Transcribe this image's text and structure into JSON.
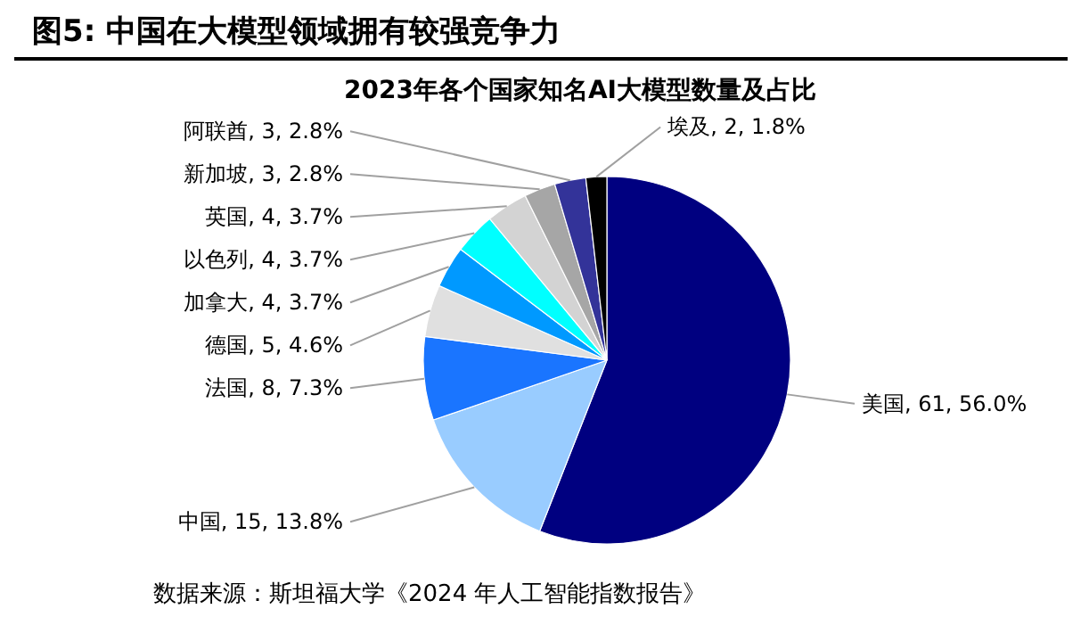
{
  "chart_data": {
    "type": "pie",
    "title": "图5:  中国在大模型领域拥有较强竞争力",
    "subtitle": "2023年各个国家知名AI大模型数量及占比",
    "categories": [
      "美国",
      "中国",
      "法国",
      "德国",
      "加拿大",
      "以色列",
      "英国",
      "新加坡",
      "阿联酋",
      "埃及"
    ],
    "values": [
      61,
      15,
      8,
      5,
      4,
      4,
      4,
      3,
      3,
      2
    ],
    "colors": [
      "#000080",
      "#99ccff",
      "#1a75ff",
      "#e0e0e0",
      "#0099ff",
      "#00ffff",
      "#d3d3d3",
      "#a6a6a6",
      "#333399",
      "#000000"
    ],
    "value_labels": [
      ", 61, 56.0%",
      ", 15, 13.8%",
      ", 8, 7.3%",
      ", 5, 4.6%",
      ", 4, 3.7%",
      ", 4, 3.7%",
      ", 4, 3.7%",
      ", 3, 2.8%",
      ", 3, 2.8%",
      ", 2, 1.8%"
    ],
    "annotations": [
      "数据来源：斯坦福大学《2024 年人工智能指数报告》"
    ]
  }
}
